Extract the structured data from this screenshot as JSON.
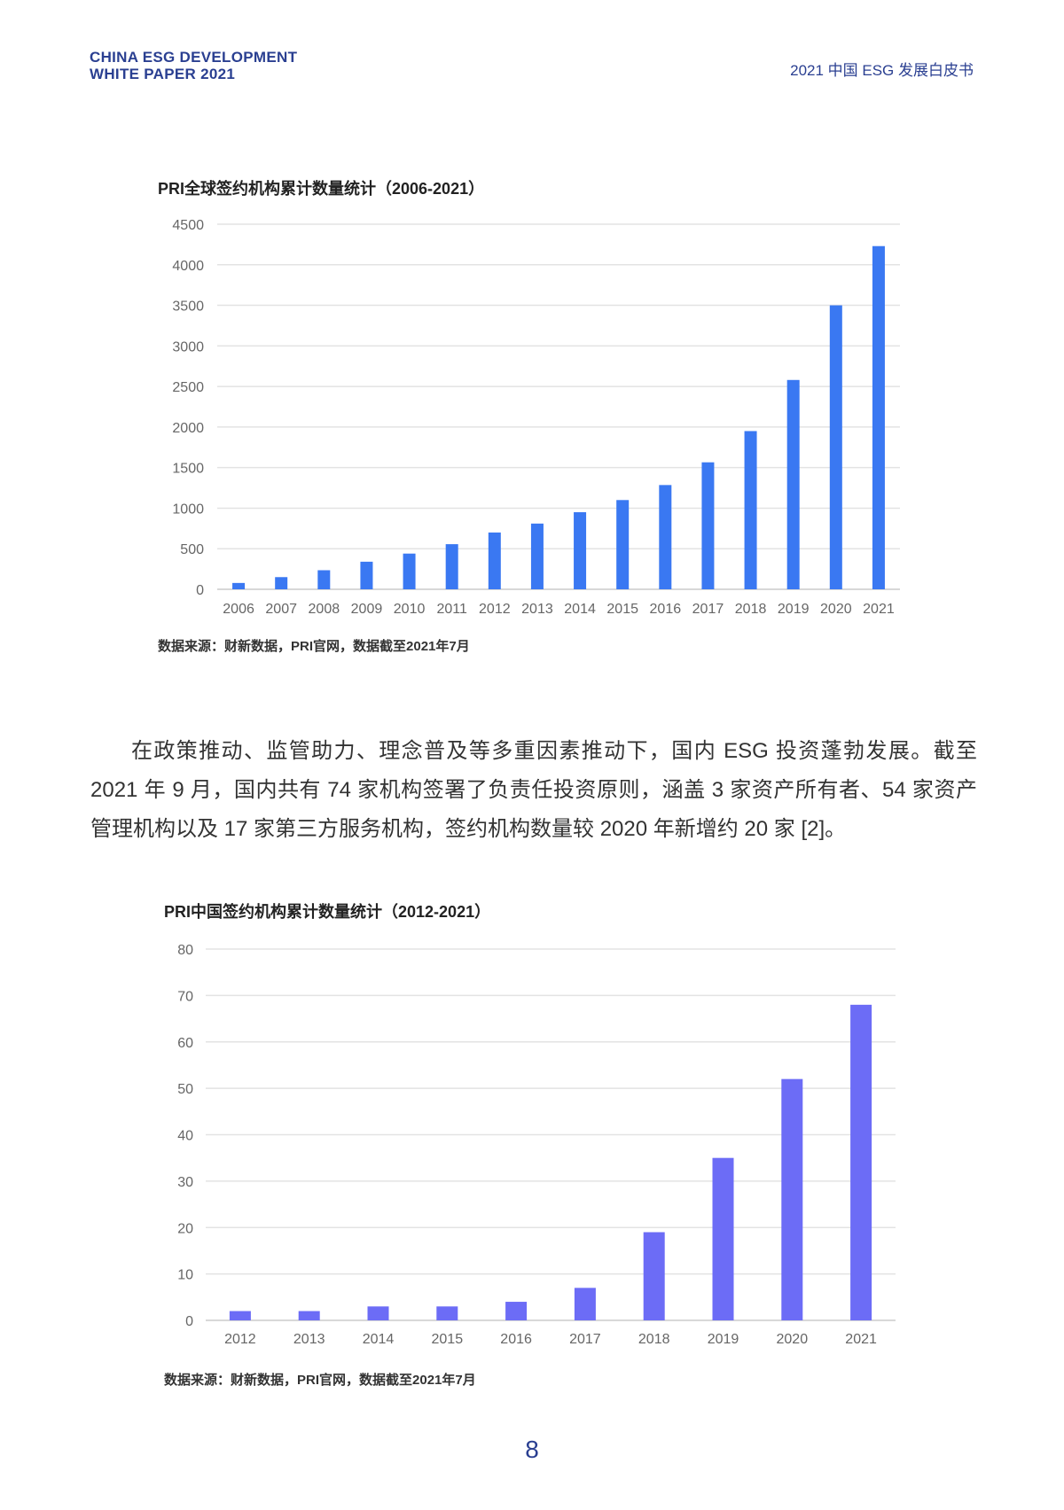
{
  "header": {
    "left_line1": "CHINA ESG DEVELOPMENT",
    "left_line2": "WHITE PAPER 2021",
    "right": "2021 中国 ESG 发展白皮书"
  },
  "paragraph": "在政策推动、监管助力、理念普及等多重因素推动下，国内 ESG 投资蓬勃发展。截至 2021 年 9 月，国内共有 74 家机构签署了负责任投资原则，涵盖 3 家资产所有者、54 家资产管理机构以及 17 家第三方服务机构，签约机构数量较 2020 年新增约 20 家 [2]。",
  "page_number": "8",
  "chart_data": [
    {
      "type": "bar",
      "title": "PRI全球签约机构累计数量统计（2006-2021）",
      "source": "数据来源：财新数据，PRI官网，数据截至2021年7月",
      "categories": [
        "2006",
        "2007",
        "2008",
        "2009",
        "2010",
        "2011",
        "2012",
        "2013",
        "2014",
        "2015",
        "2016",
        "2017",
        "2018",
        "2019",
        "2020",
        "2021"
      ],
      "values": [
        78,
        150,
        235,
        340,
        440,
        556,
        700,
        810,
        950,
        1100,
        1285,
        1565,
        1950,
        2580,
        3500,
        4230
      ],
      "yticks": [
        "0",
        "500",
        "1000",
        "1500",
        "2000",
        "2500",
        "3000",
        "3500",
        "4000",
        "4500"
      ],
      "ylim": [
        0,
        4500
      ],
      "xlabel": "",
      "ylabel": "",
      "grid": true,
      "color": "#3a78f2"
    },
    {
      "type": "bar",
      "title": "PRI中国签约机构累计数量统计（2012-2021）",
      "source": "数据来源：财新数据，PRI官网，数据截至2021年7月",
      "categories": [
        "2012",
        "2013",
        "2014",
        "2015",
        "2016",
        "2017",
        "2018",
        "2019",
        "2020",
        "2021"
      ],
      "values": [
        2,
        2,
        3,
        3,
        4,
        7,
        19,
        35,
        52,
        68
      ],
      "yticks": [
        "0",
        "10",
        "20",
        "30",
        "40",
        "50",
        "60",
        "70",
        "80"
      ],
      "ylim": [
        0,
        80
      ],
      "xlabel": "",
      "ylabel": "",
      "grid": true,
      "color": "#6c6cf6"
    }
  ]
}
